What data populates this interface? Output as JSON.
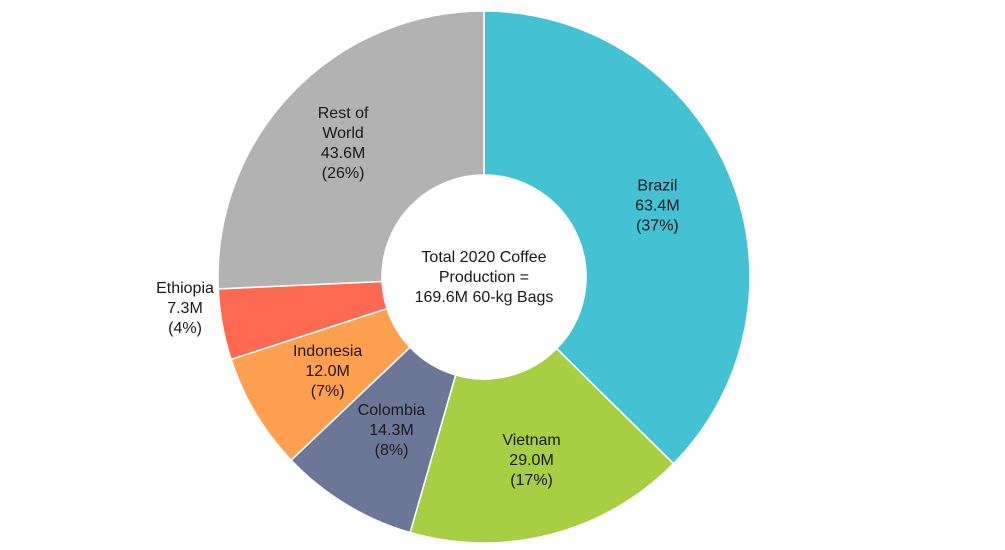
{
  "chart_data": {
    "type": "pie",
    "variant": "donut",
    "title": "",
    "center_label": [
      "Total 2020 Coffee",
      "Production =",
      "169.6M 60-kg Bags"
    ],
    "slices": [
      {
        "label": "Brazil",
        "value": 63.4,
        "value_text": "63.4M",
        "pct_text": "(37%)",
        "color": "#44C2D3"
      },
      {
        "label": "Vietnam",
        "value": 29.0,
        "value_text": "29.0M",
        "pct_text": "(17%)",
        "color": "#A8CE43"
      },
      {
        "label": "Colombia",
        "value": 14.3,
        "value_text": "14.3M",
        "pct_text": "(8%)",
        "color": "#6C7798"
      },
      {
        "label": "Indonesia",
        "value": 12.0,
        "value_text": "12.0M",
        "pct_text": "(7%)",
        "color": "#FF9F50"
      },
      {
        "label": "Ethiopia",
        "value": 7.3,
        "value_text": "7.3M",
        "pct_text": "(4%)",
        "color": "#FF6851"
      },
      {
        "label": [
          "Rest of",
          "World"
        ],
        "value": 43.6,
        "value_text": "43.6M",
        "pct_text": "(26%)",
        "color": "#B2B2B2"
      }
    ],
    "legend": "none"
  }
}
